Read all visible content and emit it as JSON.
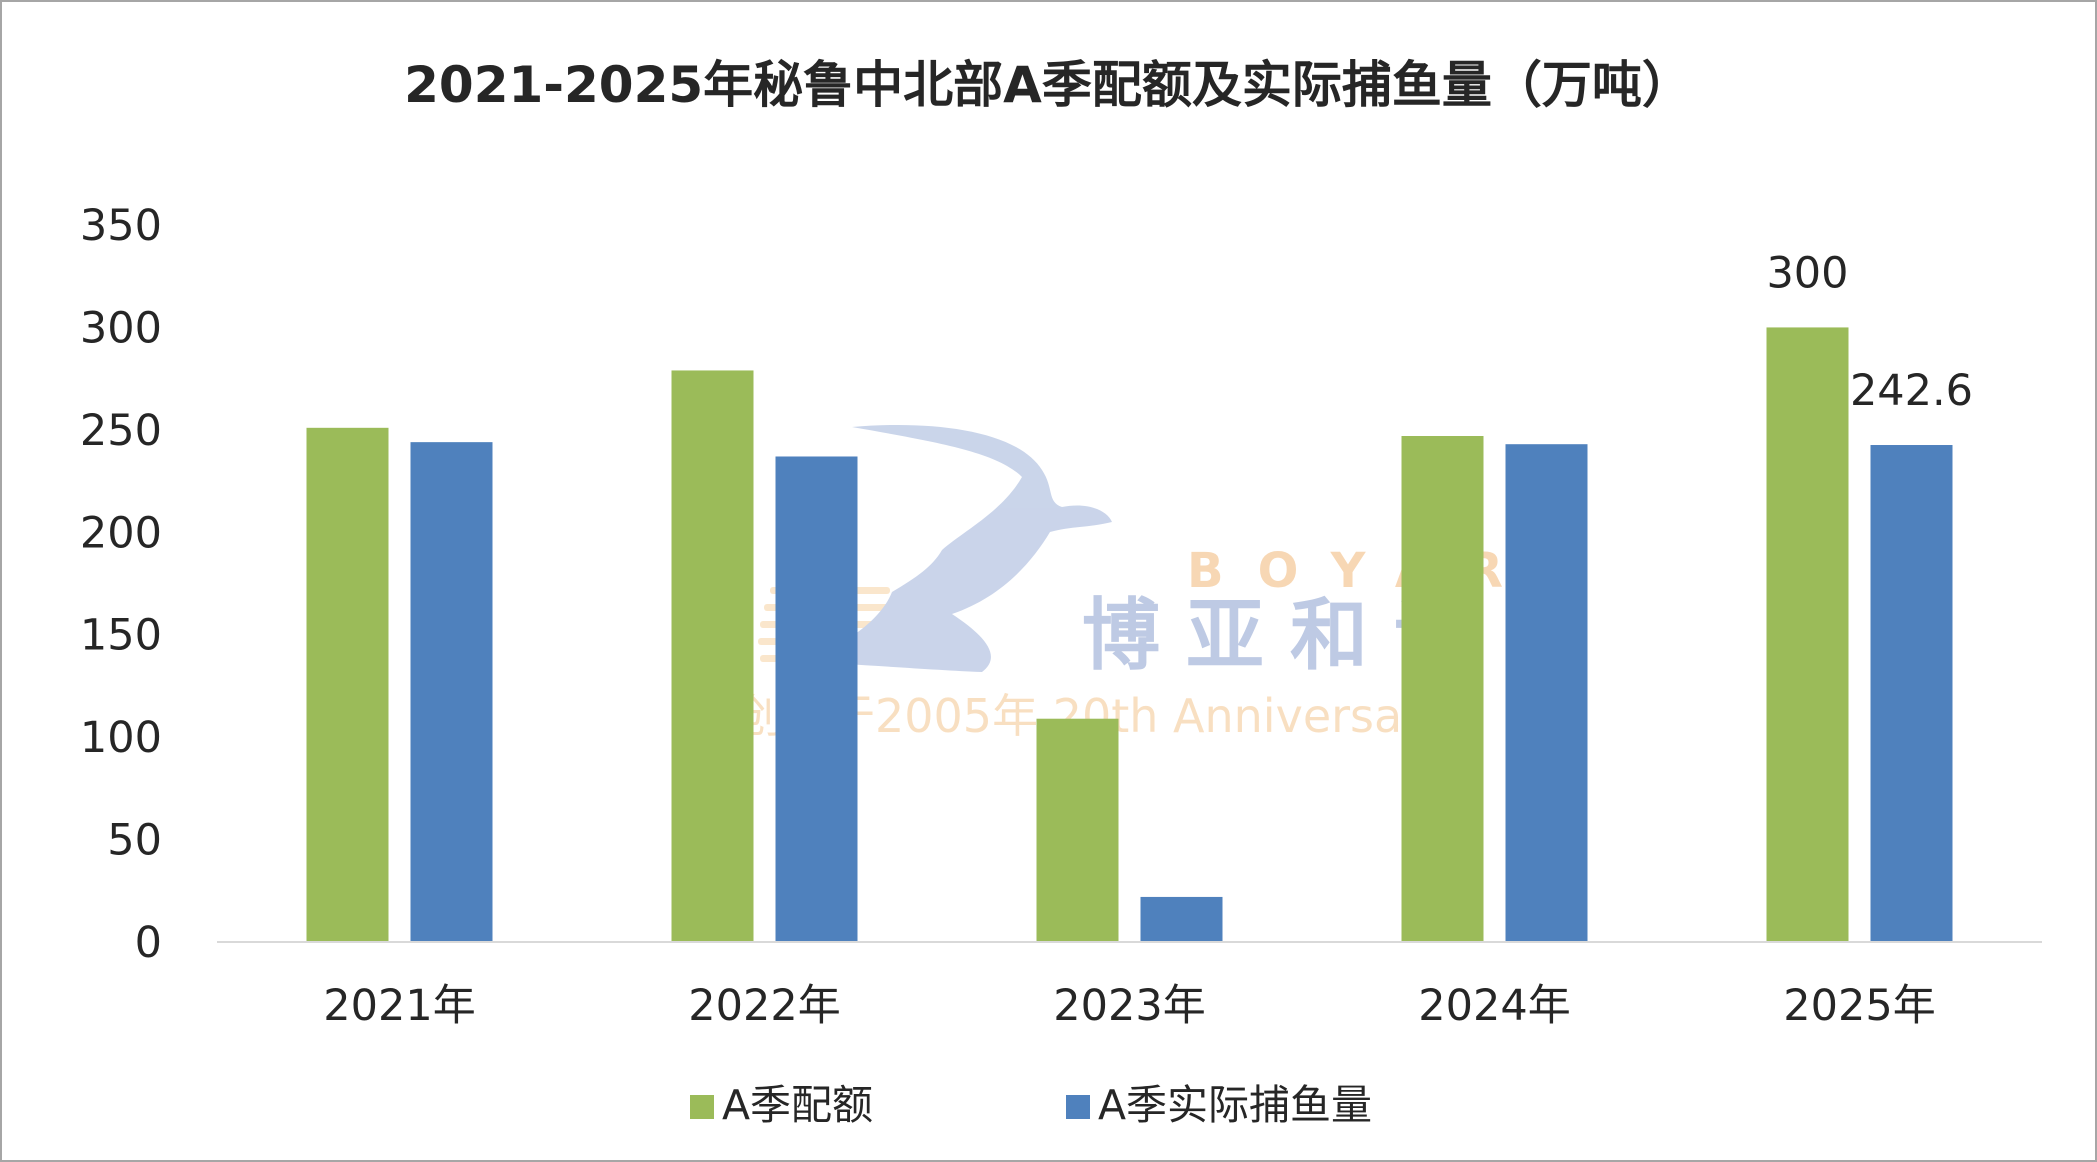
{
  "chart_data": {
    "type": "bar",
    "title": "2021-2025年秘鲁中北部A季配额及实际捕鱼量（万吨）",
    "categories": [
      "2021年",
      "2022年",
      "2023年",
      "2024年",
      "2025年"
    ],
    "series": [
      {
        "name": "A季配额",
        "values": [
          251,
          279,
          109,
          247,
          300
        ],
        "color": "#9bbb59"
      },
      {
        "name": "A季实际捕鱼量",
        "values": [
          244,
          237,
          22,
          243,
          242.6
        ],
        "color": "#4f81bd"
      }
    ],
    "data_labels": [
      {
        "series": 0,
        "index": 4,
        "text": "300"
      },
      {
        "series": 1,
        "index": 4,
        "text": "242.6"
      }
    ],
    "yticks": [
      "0",
      "50",
      "100",
      "150",
      "200",
      "250",
      "300",
      "350"
    ],
    "ylim": [
      0,
      350
    ],
    "grid": false,
    "legend_position": "bottom"
  },
  "watermark": {
    "logo": "BOYA bird logo",
    "text": "博亚和讯",
    "latin": "BOYAR",
    "tagline": "创刊于2005年 20th Anniversary"
  }
}
